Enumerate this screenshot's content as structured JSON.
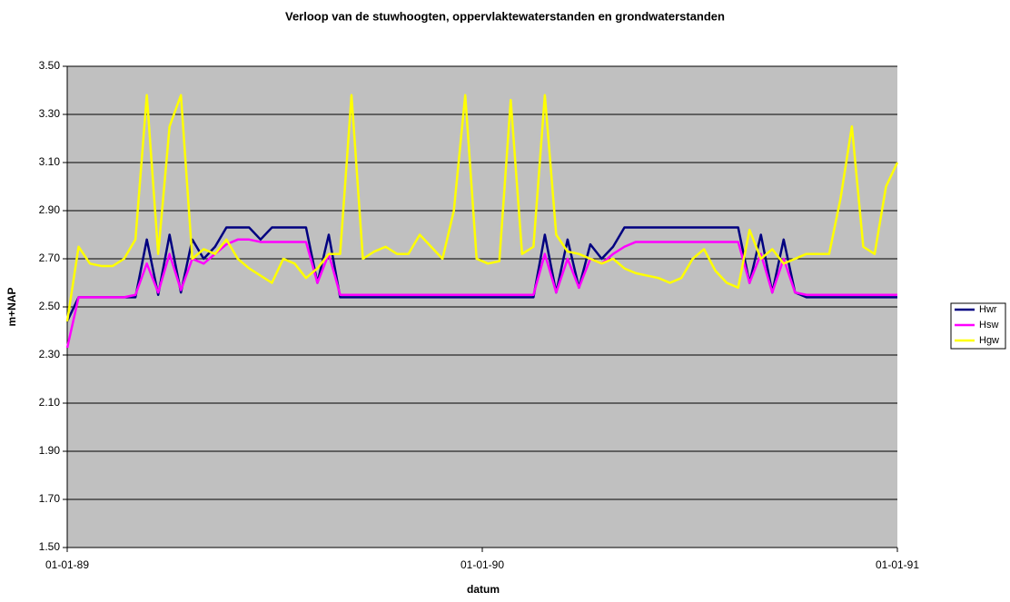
{
  "chart_data": {
    "type": "line",
    "title": "Verloop van de stuwhoogten, oppervlaktewaterstanden en grondwaterstanden",
    "xlabel": "datum",
    "ylabel": "m+NAP",
    "x": [
      0,
      10,
      20,
      30,
      40,
      50,
      60,
      70,
      80,
      90,
      100,
      110,
      120,
      130,
      140,
      150,
      160,
      170,
      180,
      190,
      200,
      210,
      220,
      230,
      240,
      250,
      260,
      270,
      280,
      290,
      300,
      310,
      320,
      330,
      340,
      350,
      360,
      370,
      380,
      390,
      400,
      410,
      420,
      430,
      440,
      450,
      460,
      470,
      480,
      490,
      500,
      510,
      520,
      530,
      540,
      550,
      560,
      570,
      580,
      590,
      600,
      610,
      620,
      630,
      640,
      650,
      660,
      670,
      680,
      690,
      700,
      710,
      720,
      730
    ],
    "series": [
      {
        "name": "Hwr",
        "color": "#000080",
        "values": [
          2.44,
          2.54,
          2.54,
          2.54,
          2.54,
          2.54,
          2.54,
          2.78,
          2.55,
          2.8,
          2.56,
          2.78,
          2.7,
          2.75,
          2.83,
          2.83,
          2.83,
          2.78,
          2.83,
          2.83,
          2.83,
          2.83,
          2.6,
          2.8,
          2.54,
          2.54,
          2.54,
          2.54,
          2.54,
          2.54,
          2.54,
          2.54,
          2.54,
          2.54,
          2.54,
          2.54,
          2.54,
          2.54,
          2.54,
          2.54,
          2.54,
          2.54,
          2.8,
          2.56,
          2.78,
          2.58,
          2.76,
          2.7,
          2.75,
          2.83,
          2.83,
          2.83,
          2.83,
          2.83,
          2.83,
          2.83,
          2.83,
          2.83,
          2.83,
          2.83,
          2.6,
          2.8,
          2.56,
          2.78,
          2.56,
          2.54,
          2.54,
          2.54,
          2.54,
          2.54,
          2.54,
          2.54,
          2.54,
          2.54
        ]
      },
      {
        "name": "Hsw",
        "color": "#ff00ff",
        "values": [
          2.33,
          2.54,
          2.54,
          2.54,
          2.54,
          2.54,
          2.55,
          2.68,
          2.56,
          2.72,
          2.57,
          2.7,
          2.68,
          2.72,
          2.76,
          2.78,
          2.78,
          2.77,
          2.77,
          2.77,
          2.77,
          2.77,
          2.6,
          2.72,
          2.55,
          2.55,
          2.55,
          2.55,
          2.55,
          2.55,
          2.55,
          2.55,
          2.55,
          2.55,
          2.55,
          2.55,
          2.55,
          2.55,
          2.55,
          2.55,
          2.55,
          2.55,
          2.72,
          2.56,
          2.7,
          2.58,
          2.7,
          2.68,
          2.72,
          2.75,
          2.77,
          2.77,
          2.77,
          2.77,
          2.77,
          2.77,
          2.77,
          2.77,
          2.77,
          2.77,
          2.6,
          2.72,
          2.56,
          2.7,
          2.56,
          2.55,
          2.55,
          2.55,
          2.55,
          2.55,
          2.55,
          2.55,
          2.55,
          2.55
        ]
      },
      {
        "name": "Hgw",
        "color": "#ffff00",
        "values": [
          2.44,
          2.75,
          2.68,
          2.67,
          2.67,
          2.7,
          2.78,
          3.38,
          2.72,
          3.25,
          3.38,
          2.7,
          2.74,
          2.72,
          2.78,
          2.7,
          2.66,
          2.63,
          2.6,
          2.7,
          2.68,
          2.62,
          2.66,
          2.72,
          2.72,
          3.38,
          2.7,
          2.73,
          2.75,
          2.72,
          2.72,
          2.8,
          2.75,
          2.7,
          2.9,
          3.38,
          2.7,
          2.68,
          2.69,
          3.36,
          2.72,
          2.75,
          3.38,
          2.8,
          2.73,
          2.72,
          2.7,
          2.68,
          2.7,
          2.66,
          2.64,
          2.63,
          2.62,
          2.6,
          2.62,
          2.7,
          2.74,
          2.65,
          2.6,
          2.58,
          2.82,
          2.7,
          2.74,
          2.68,
          2.7,
          2.72,
          2.72,
          2.72,
          2.95,
          3.25,
          2.75,
          2.72,
          3.0,
          3.1
        ]
      }
    ],
    "xlim": [
      0,
      730
    ],
    "xticks": [
      {
        "value": 0,
        "label": "01-01-89"
      },
      {
        "value": 365,
        "label": "01-01-90"
      },
      {
        "value": 730,
        "label": "01-01-91"
      }
    ],
    "ylim": [
      1.5,
      3.5
    ],
    "yticks": [
      {
        "value": 1.5,
        "label": "1.50"
      },
      {
        "value": 1.7,
        "label": "1.70"
      },
      {
        "value": 1.9,
        "label": "1.90"
      },
      {
        "value": 2.1,
        "label": "2.10"
      },
      {
        "value": 2.3,
        "label": "2.30"
      },
      {
        "value": 2.5,
        "label": "2.50"
      },
      {
        "value": 2.7,
        "label": "2.70"
      },
      {
        "value": 2.9,
        "label": "2.90"
      },
      {
        "value": 3.1,
        "label": "3.10"
      },
      {
        "value": 3.3,
        "label": "3.30"
      },
      {
        "value": 3.5,
        "label": "3.50"
      }
    ],
    "grid": true,
    "legend": "right"
  }
}
